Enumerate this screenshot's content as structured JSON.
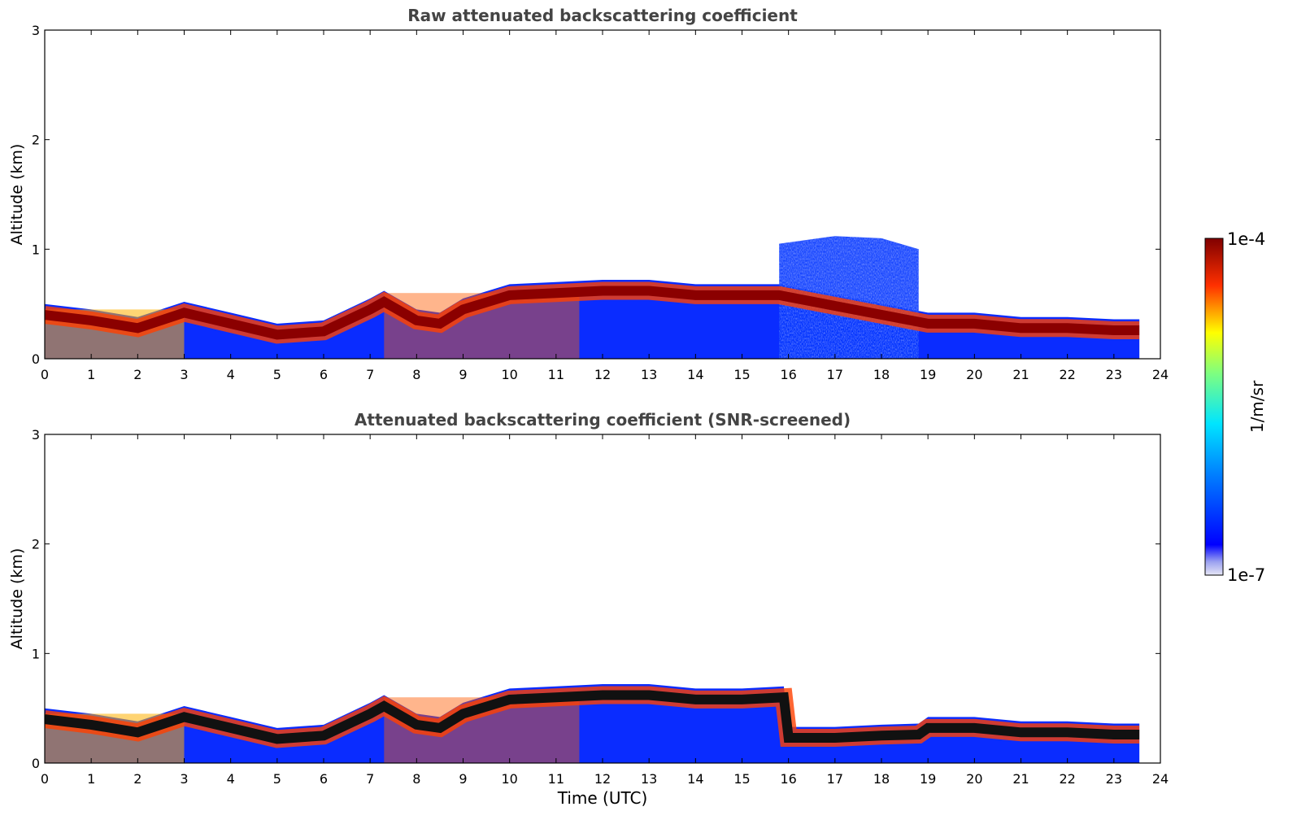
{
  "chart_data": [
    {
      "type": "heatmap",
      "title": "Raw attenuated backscattering coefficient",
      "xlabel": "",
      "ylabel": "Altitude (km)",
      "xlim": [
        0,
        24
      ],
      "ylim": [
        0,
        3
      ],
      "x_ticks": [
        "0",
        "1",
        "2",
        "3",
        "4",
        "5",
        "6",
        "7",
        "8",
        "9",
        "10",
        "11",
        "12",
        "13",
        "14",
        "15",
        "16",
        "17",
        "18",
        "19",
        "20",
        "21",
        "22",
        "23",
        "24"
      ],
      "y_ticks": [
        "0",
        "1",
        "2",
        "3"
      ],
      "data_end_time": 23.55,
      "layer_top_km": [
        [
          0,
          0.5
        ],
        [
          1,
          0.45
        ],
        [
          2,
          0.38
        ],
        [
          3,
          0.52
        ],
        [
          4,
          0.42
        ],
        [
          5,
          0.32
        ],
        [
          6,
          0.35
        ],
        [
          7,
          0.55
        ],
        [
          7.3,
          0.62
        ],
        [
          8,
          0.45
        ],
        [
          8.5,
          0.42
        ],
        [
          9,
          0.55
        ],
        [
          10,
          0.68
        ],
        [
          11,
          0.7
        ],
        [
          12,
          0.72
        ],
        [
          13,
          0.72
        ],
        [
          14,
          0.68
        ],
        [
          15,
          0.68
        ],
        [
          15.8,
          0.68
        ],
        [
          19,
          0.42
        ],
        [
          20,
          0.42
        ],
        [
          21,
          0.38
        ],
        [
          22,
          0.38
        ],
        [
          23,
          0.36
        ],
        [
          23.55,
          0.36
        ]
      ],
      "aerosol_top_km": [
        [
          15.8,
          1.05
        ],
        [
          17,
          1.12
        ],
        [
          18,
          1.1
        ],
        [
          18.8,
          1.0
        ]
      ],
      "colorbar": {
        "label": "1/m/sr",
        "min": "1e-7",
        "max": "1e-4"
      }
    },
    {
      "type": "heatmap",
      "title": "Attenuated backscattering coefficient (SNR-screened)",
      "xlabel": "Time (UTC)",
      "ylabel": "Altitude (km)",
      "xlim": [
        0,
        24
      ],
      "ylim": [
        0,
        3
      ],
      "x_ticks": [
        "0",
        "1",
        "2",
        "3",
        "4",
        "5",
        "6",
        "7",
        "8",
        "9",
        "10",
        "11",
        "12",
        "13",
        "14",
        "15",
        "16",
        "17",
        "18",
        "19",
        "20",
        "21",
        "22",
        "23",
        "24"
      ],
      "y_ticks": [
        "0",
        "1",
        "2",
        "3"
      ],
      "data_end_time": 23.55,
      "layer_top_km": [
        [
          0,
          0.5
        ],
        [
          1,
          0.45
        ],
        [
          2,
          0.38
        ],
        [
          3,
          0.52
        ],
        [
          4,
          0.42
        ],
        [
          5,
          0.32
        ],
        [
          6,
          0.35
        ],
        [
          7,
          0.55
        ],
        [
          7.3,
          0.62
        ],
        [
          8,
          0.45
        ],
        [
          8.5,
          0.42
        ],
        [
          9,
          0.55
        ],
        [
          10,
          0.68
        ],
        [
          11,
          0.7
        ],
        [
          12,
          0.72
        ],
        [
          13,
          0.72
        ],
        [
          14,
          0.68
        ],
        [
          15,
          0.68
        ],
        [
          15.9,
          0.7
        ],
        [
          16,
          0.33
        ],
        [
          17,
          0.33
        ],
        [
          18,
          0.35
        ],
        [
          18.8,
          0.36
        ],
        [
          19,
          0.42
        ],
        [
          20,
          0.42
        ],
        [
          21,
          0.38
        ],
        [
          22,
          0.38
        ],
        [
          23,
          0.36
        ],
        [
          23.55,
          0.36
        ]
      ],
      "colorbar": {
        "label": "1/m/sr",
        "min": "1e-7",
        "max": "1e-4"
      }
    }
  ]
}
